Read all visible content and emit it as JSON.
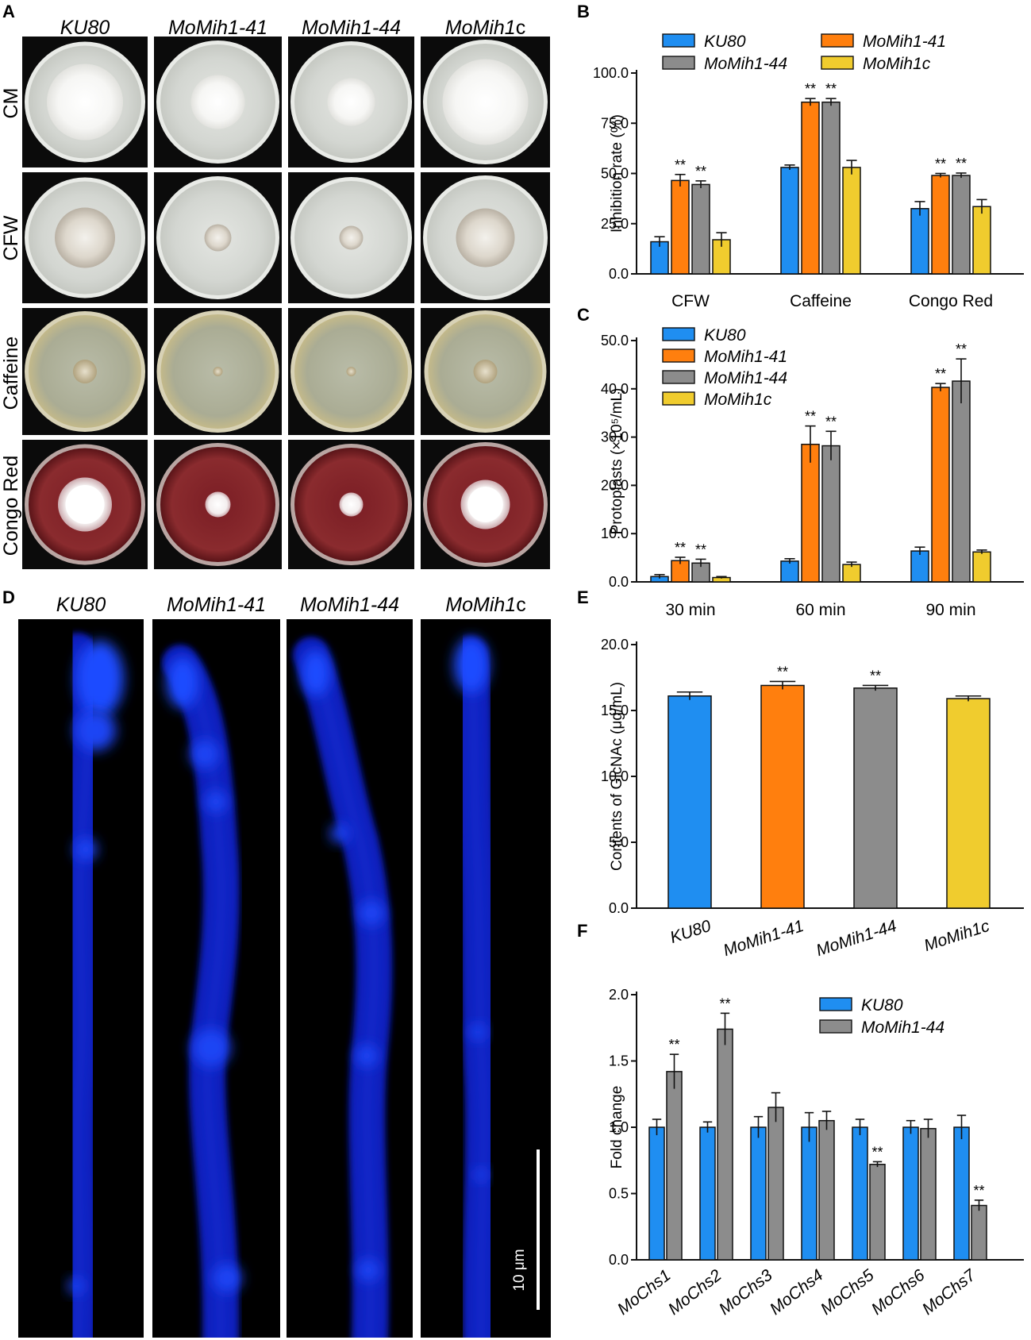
{
  "panel_labels": [
    "A",
    "B",
    "C",
    "D",
    "E",
    "F"
  ],
  "panel_a": {
    "strains": [
      {
        "text": "KU80",
        "italic": "KU80",
        "plain": ""
      },
      {
        "text": "MoMih1-41",
        "italic": "MoMih1-41",
        "plain": ""
      },
      {
        "text": "MoMih1-44",
        "italic": "MoMih1-44",
        "plain": ""
      },
      {
        "text": "MoMih1c",
        "italic": "MoMih1",
        "plain": "c"
      }
    ],
    "conditions": [
      "CM",
      "CFW",
      "Caffeine",
      "Congo Red"
    ]
  },
  "panel_d": {
    "strains": [
      {
        "text": "KU80",
        "italic": "KU80",
        "plain": ""
      },
      {
        "text": "MoMih1-41",
        "italic": "MoMih1-41",
        "plain": ""
      },
      {
        "text": "MoMih1-44",
        "italic": "MoMih1-44",
        "plain": ""
      },
      {
        "text": "MoMih1c",
        "italic": "MoMih1",
        "plain": "c"
      }
    ],
    "scale_bar": "10 μm"
  },
  "colors": {
    "KU80": "#1f8ef1",
    "MoMih1-41": "#ff7f0e",
    "MoMih1-44": "#8c8c8c",
    "MoMih1c": "#f0cc2e"
  },
  "chart_data": [
    {
      "id": "B",
      "type": "bar",
      "ylabel": "Inhibition rate (%)",
      "ylim": [
        0,
        100
      ],
      "yticks": [
        "0.0",
        "25.0",
        "50.0",
        "75.0",
        "100.0"
      ],
      "categories": [
        "CFW",
        "Caffeine",
        "Congo Red"
      ],
      "series": [
        {
          "name": "KU80",
          "values": [
            16,
            53,
            32.5
          ],
          "errors": [
            2.5,
            1.2,
            3.5
          ],
          "sig": [
            "",
            "",
            ""
          ]
        },
        {
          "name": "MoMih1-41",
          "values": [
            46.5,
            85.5,
            49
          ],
          "errors": [
            3,
            1.8,
            1
          ],
          "sig": [
            "**",
            "**",
            "**"
          ]
        },
        {
          "name": "MoMih1-44",
          "values": [
            44.5,
            85.5,
            49
          ],
          "errors": [
            1.8,
            1.8,
            1.2
          ],
          "sig": [
            "**",
            "**",
            "**"
          ]
        },
        {
          "name": "MoMih1c",
          "values": [
            17,
            53,
            33.5
          ],
          "errors": [
            3.5,
            3.5,
            3.5
          ],
          "sig": [
            "",
            "",
            ""
          ]
        }
      ],
      "legend": "top, two columns"
    },
    {
      "id": "C",
      "type": "bar",
      "ylabel": "Protoplasts (×10⁵/mL)",
      "ylim": [
        0,
        50
      ],
      "yticks": [
        "0.0",
        "10.0",
        "20.0",
        "30.0",
        "40.0",
        "50.0"
      ],
      "categories": [
        "30 min",
        "60 min",
        "90 min"
      ],
      "series": [
        {
          "name": "KU80",
          "values": [
            1.1,
            4.3,
            6.4
          ],
          "errors": [
            0.4,
            0.5,
            0.8
          ],
          "sig": [
            "",
            "",
            ""
          ]
        },
        {
          "name": "MoMih1-41",
          "values": [
            4.4,
            28.5,
            40.3
          ],
          "errors": [
            0.7,
            3.8,
            0.8
          ],
          "sig": [
            "**",
            "**",
            "**"
          ]
        },
        {
          "name": "MoMih1-44",
          "values": [
            3.9,
            28.2,
            41.6
          ],
          "errors": [
            0.8,
            3,
            4.6
          ],
          "sig": [
            "**",
            "**",
            "**"
          ]
        },
        {
          "name": "MoMih1c",
          "values": [
            0.9,
            3.6,
            6.2
          ],
          "errors": [
            0.2,
            0.5,
            0.4
          ],
          "sig": [
            "",
            "",
            ""
          ]
        }
      ],
      "legend": "top-left, single column"
    },
    {
      "id": "E",
      "type": "bar",
      "ylabel": "Contents of GlcNAc (μg/mL)",
      "ylim": [
        0,
        20
      ],
      "yticks": [
        "0.0",
        "5.0",
        "10.0",
        "15.0",
        "20.0"
      ],
      "categories": [
        "KU80",
        "MoMih1-41",
        "MoMih1-44",
        "MoMih1c"
      ],
      "values": [
        16.1,
        16.9,
        16.7,
        15.9
      ],
      "errors": [
        0.3,
        0.3,
        0.2,
        0.2
      ],
      "sig": [
        "",
        "**",
        "**",
        ""
      ]
    },
    {
      "id": "F",
      "type": "bar",
      "ylabel": "Fold change",
      "ylim": [
        0,
        2
      ],
      "yticks": [
        "0.0",
        "0.5",
        "1.0",
        "1.5",
        "2.0"
      ],
      "categories": [
        "MoChs1",
        "MoChs2",
        "MoChs3",
        "MoChs4",
        "MoChs5",
        "MoChs6",
        "MoChs7"
      ],
      "series": [
        {
          "name": "KU80",
          "values": [
            1,
            1,
            1,
            1,
            1,
            1,
            1
          ],
          "errors": [
            0.06,
            0.04,
            0.08,
            0.11,
            0.06,
            0.05,
            0.09
          ],
          "sig": [
            "",
            "",
            "",
            "",
            "",
            "",
            ""
          ]
        },
        {
          "name": "MoMih1-44",
          "values": [
            1.42,
            1.74,
            1.15,
            1.05,
            0.72,
            0.99,
            0.41
          ],
          "errors": [
            0.13,
            0.12,
            0.11,
            0.07,
            0.02,
            0.07,
            0.04
          ],
          "sig": [
            "**",
            "**",
            "",
            "",
            "**",
            "",
            "**"
          ]
        }
      ],
      "legend": "top-right, single column"
    }
  ]
}
